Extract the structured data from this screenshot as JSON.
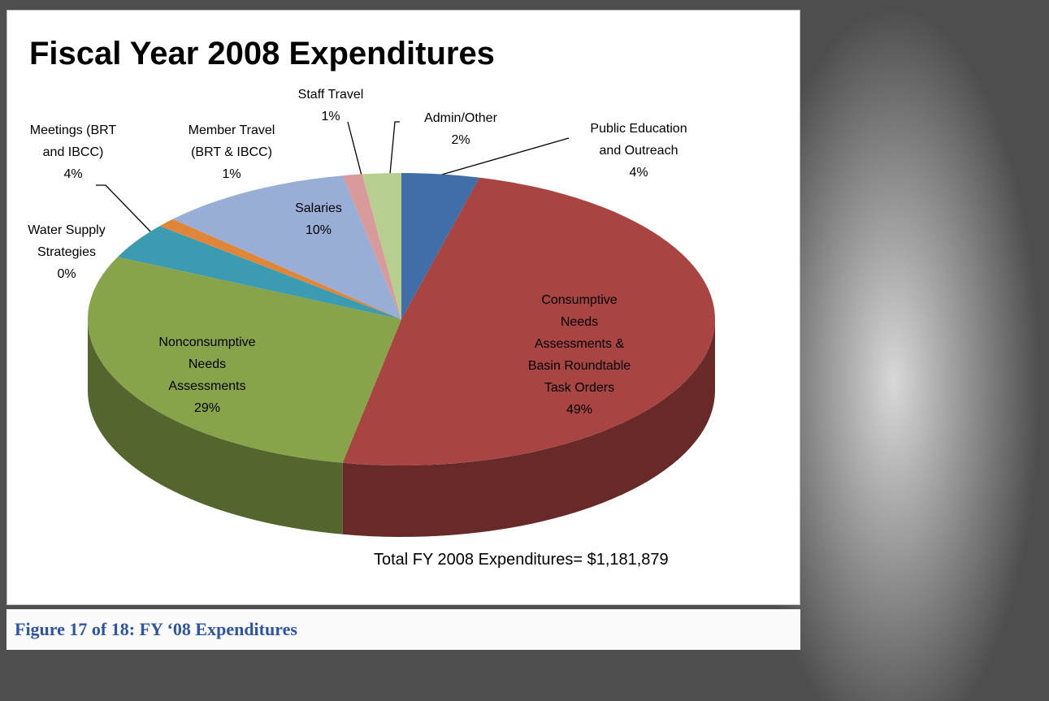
{
  "chart_data": {
    "type": "pie",
    "title": "Fiscal Year 2008 Expenditures",
    "categories": [
      "Public Education and Outreach",
      "Consumptive Needs Assessments & Basin Roundtable Task Orders",
      "Nonconsumptive Needs Assessments",
      "Water Supply Strategies",
      "Meetings (BRT and IBCC)",
      "Member Travel (BRT & IBCC)",
      "Salaries",
      "Staff Travel",
      "Admin/Other"
    ],
    "values": [
      4,
      49,
      29,
      0,
      4,
      1,
      10,
      1,
      2
    ],
    "value_labels": [
      "4%",
      "49%",
      "29%",
      "0%",
      "4%",
      "1%",
      "10%",
      "1%",
      "2%"
    ],
    "colors": [
      "#3f6ea8",
      "#a84442",
      "#88a44a",
      "#6f5a96",
      "#3b9cb1",
      "#e0863a",
      "#98aed6",
      "#d99a9b",
      "#b6cf8e"
    ],
    "annotation": "Total FY 2008 Expenditures= $1,181,879",
    "caption": "Figure 17 of 18: FY ‘08 Expenditures"
  }
}
